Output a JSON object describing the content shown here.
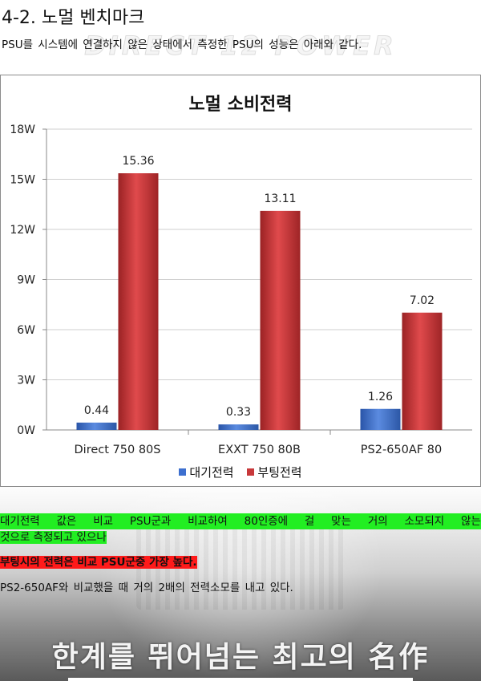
{
  "section_title": "4-2. 노멀 벤치마크",
  "intro_text": "PSU를 시스템에 연결하지 않은 상태에서 측정한 PSU의 성능은 아래와 같다.",
  "watermark": "DIRECT 12 POWER",
  "chart_data": {
    "type": "bar",
    "title": "노멀 소비전력",
    "categories": [
      "Direct 750 80S",
      "EXXT 750 80B",
      "PS2-650AF 80"
    ],
    "series": [
      {
        "name": "대기전력",
        "values": [
          0.44,
          0.33,
          1.26
        ],
        "color": "#3d6fcf"
      },
      {
        "name": "부팅전력",
        "values": [
          15.36,
          13.11,
          7.02
        ],
        "color": "#c8383a"
      }
    ],
    "ylim": [
      0,
      18
    ],
    "yticks": [
      0,
      3,
      6,
      9,
      12,
      15,
      18
    ],
    "ytick_labels": [
      "0W",
      "3W",
      "6W",
      "9W",
      "12W",
      "15W",
      "18W"
    ],
    "grid": true,
    "legend_position": "bottom"
  },
  "paragraphs": {
    "p1_line1": [
      "대기전력",
      "값은",
      "비교",
      "PSU군과",
      "비교하여",
      "80인증에",
      "걸",
      "맞는",
      "거의",
      "소모되지",
      "않는"
    ],
    "p1_line2": "것으로 측정되고 있으나",
    "p2": "부팅시의 전력은 비교 PSU군중 가장 높다.",
    "p3": "PS2-650AF와 비교했을 때 거의 2배의 전력소모를 내고 있다."
  },
  "slogan": "한계를 뛰어넘는 최고의 名作",
  "colors": {
    "highlight_green": "#22ee22",
    "highlight_red": "#ff1a1a",
    "series_blue": "#3d6fcf",
    "series_red": "#c8383a"
  }
}
